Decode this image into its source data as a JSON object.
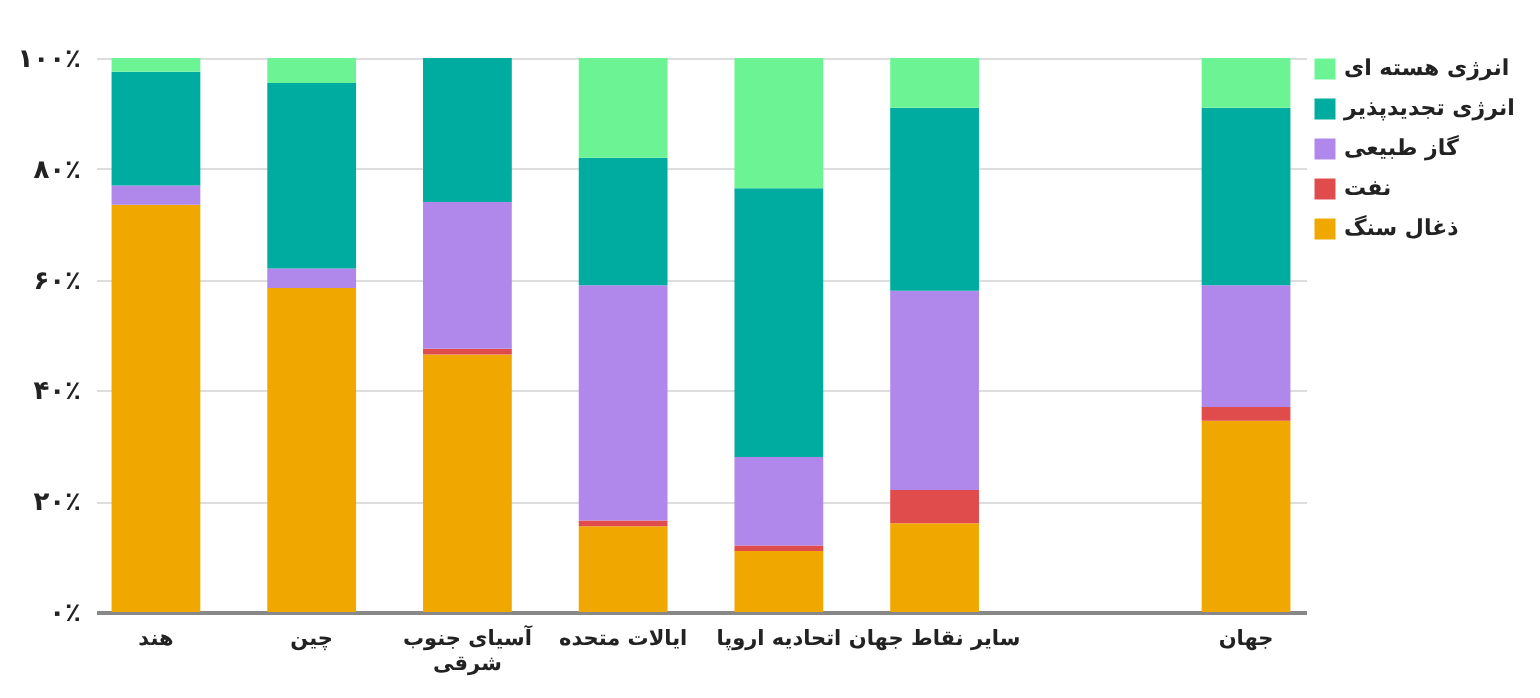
{
  "chart_data": {
    "type": "bar",
    "stacked": true,
    "categories": [
      "هند",
      "چین",
      "آسیای جنوب شرقی",
      "ایالات متحده",
      "اتحادیه اروپا",
      "سایر نقاط جهان",
      null,
      "جهان"
    ],
    "series": [
      {
        "name": "ذغال سنگ",
        "color": "#f0a800",
        "values": [
          73.5,
          58.5,
          46.5,
          15.5,
          11,
          16,
          null,
          34.5
        ]
      },
      {
        "name": "نفت",
        "color": "#e04c4c",
        "values": [
          0,
          0,
          1,
          1,
          1,
          6,
          null,
          2.5
        ]
      },
      {
        "name": "گاز طبیعی",
        "color": "#b088ec",
        "values": [
          3.5,
          3.5,
          26.5,
          42.5,
          16,
          36,
          null,
          22
        ]
      },
      {
        "name": "انرژی تجدیدپذیر",
        "color": "#00ac9f",
        "values": [
          20.5,
          33.5,
          26,
          23,
          48.5,
          33,
          null,
          32
        ]
      },
      {
        "name": "انرژی هسته ای",
        "color": "#6cf494",
        "values": [
          2.5,
          4.5,
          0,
          18,
          23.5,
          9,
          null,
          9
        ]
      }
    ],
    "ylim": [
      0,
      100
    ],
    "yticks": [
      {
        "value": 0,
        "label": "۰٪"
      },
      {
        "value": 20,
        "label": "۲۰٪"
      },
      {
        "value": 40,
        "label": "۴۰٪"
      },
      {
        "value": 60,
        "label": "۶۰٪"
      },
      {
        "value": 80,
        "label": "۸۰٪"
      },
      {
        "value": 100,
        "label": "۱۰۰٪"
      }
    ],
    "grid": "y",
    "legend": "top right"
  }
}
